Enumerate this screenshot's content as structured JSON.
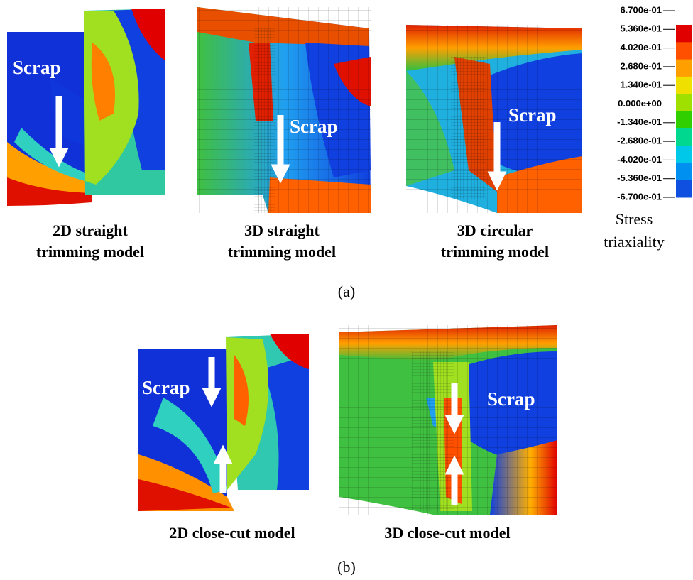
{
  "panel_a": {
    "label": "(a)",
    "models": [
      {
        "caption": [
          "2D straight",
          "trimming model"
        ],
        "scrap": "Scrap"
      },
      {
        "caption": [
          "3D straight",
          "trimming model"
        ],
        "scrap": "Scrap"
      },
      {
        "caption": [
          "3D circular",
          "trimming model"
        ],
        "scrap": "Scrap"
      }
    ]
  },
  "panel_b": {
    "label": "(b)",
    "models": [
      {
        "caption": [
          "2D close-cut model"
        ],
        "scrap": "Scrap"
      },
      {
        "caption": [
          "3D close-cut model"
        ],
        "scrap": "Scrap"
      }
    ]
  },
  "colorbar": {
    "title": [
      "Stress",
      "triaxiality"
    ],
    "ticks": [
      "6.700e-01",
      "5.360e-01",
      "4.020e-01",
      "2.680e-01",
      "1.340e-01",
      "0.000e+00",
      "-1.340e-01",
      "-2.680e-01",
      "-4.020e-01",
      "-5.360e-01",
      "-6.700e-01"
    ],
    "colors": [
      "#e00000",
      "#ff5000",
      "#ffa000",
      "#f0e000",
      "#a0e000",
      "#30d000",
      "#00d890",
      "#00c8e8",
      "#0090f0",
      "#1050e0"
    ]
  }
}
